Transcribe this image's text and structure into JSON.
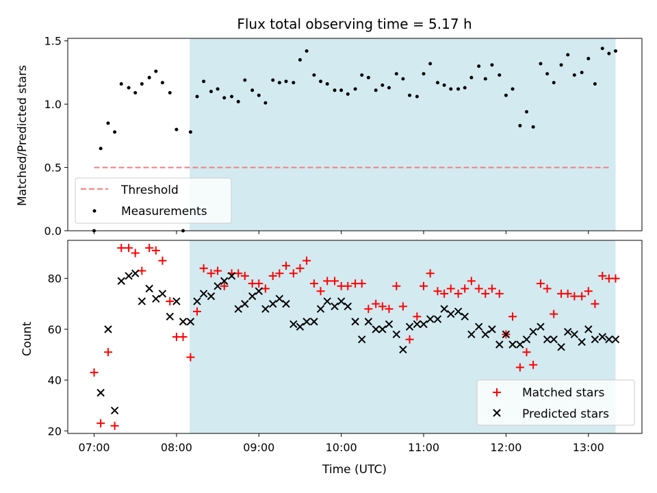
{
  "chart_data": {
    "type": "scatter",
    "title": "Flux total observing time = 5.17 h",
    "xlabel": "Time (UTC)",
    "x_ticks": [
      "07:00",
      "08:00",
      "09:00",
      "10:00",
      "11:00",
      "12:00",
      "13:00"
    ],
    "x_tick_values_h": [
      7,
      8,
      9,
      10,
      11,
      12,
      13
    ],
    "xlim_h": [
      6.68,
      13.65
    ],
    "shaded_span_h": [
      8.16,
      13.33
    ],
    "colors": {
      "shade": "#d3eaf0",
      "threshold": "#f08080",
      "matched": "#ff0000",
      "predicted": "#000000",
      "measurements": "#000000"
    },
    "panels": [
      {
        "ylabel": "Matched/Predicted stars",
        "ylim": [
          0,
          1.52
        ],
        "y_ticks": [
          0.0,
          0.5,
          1.0,
          1.5
        ],
        "y_tick_labels": [
          "0.0",
          "0.5",
          "1.0",
          "1.5"
        ],
        "legend": {
          "position": "lower-left",
          "entries": [
            "Threshold",
            "Measurements"
          ]
        },
        "threshold": {
          "name": "Threshold",
          "value": 0.5,
          "x_range": [
            7.0,
            13.28
          ]
        },
        "measurements": {
          "name": "Measurements",
          "x": [
            7.0,
            7.08,
            7.17,
            7.25,
            7.33,
            7.42,
            7.5,
            7.58,
            7.67,
            7.75,
            7.83,
            7.92,
            8.0,
            8.08,
            8.17,
            8.25,
            8.33,
            8.42,
            8.5,
            8.58,
            8.67,
            8.75,
            8.83,
            8.92,
            9.0,
            9.08,
            9.17,
            9.25,
            9.33,
            9.42,
            9.5,
            9.58,
            9.67,
            9.75,
            9.83,
            9.92,
            10.0,
            10.08,
            10.17,
            10.25,
            10.33,
            10.42,
            10.5,
            10.58,
            10.67,
            10.75,
            10.83,
            10.92,
            11.0,
            11.08,
            11.17,
            11.25,
            11.33,
            11.42,
            11.5,
            11.58,
            11.67,
            11.75,
            11.83,
            11.92,
            12.0,
            12.08,
            12.17,
            12.25,
            12.33,
            12.42,
            12.5,
            12.58,
            12.67,
            12.75,
            12.83,
            12.92,
            13.0,
            13.08,
            13.17,
            13.25,
            13.33
          ],
          "y": [
            0.0,
            0.65,
            0.85,
            0.78,
            1.16,
            1.13,
            1.09,
            1.16,
            1.21,
            1.26,
            1.17,
            1.09,
            0.8,
            0.0,
            0.78,
            1.06,
            1.18,
            1.1,
            1.12,
            1.05,
            1.06,
            1.02,
            1.19,
            1.11,
            1.07,
            1.01,
            1.19,
            1.17,
            1.18,
            1.17,
            1.35,
            1.42,
            1.23,
            1.18,
            1.16,
            1.11,
            1.11,
            1.08,
            1.12,
            1.23,
            1.21,
            1.11,
            1.15,
            1.13,
            1.24,
            1.2,
            1.07,
            1.06,
            1.24,
            1.32,
            1.17,
            1.15,
            1.12,
            1.12,
            1.13,
            1.21,
            1.3,
            1.2,
            1.31,
            1.23,
            1.07,
            1.12,
            0.83,
            0.94,
            0.82,
            1.32,
            1.24,
            1.17,
            1.31,
            1.39,
            1.23,
            1.25,
            1.36,
            1.16,
            1.44,
            1.4,
            1.42
          ]
        }
      },
      {
        "ylabel": "Count",
        "ylim": [
          19,
          95
        ],
        "y_ticks": [
          20,
          40,
          60,
          80
        ],
        "y_tick_labels": [
          "20",
          "40",
          "60",
          "80"
        ],
        "legend": {
          "position": "lower-right",
          "entries": [
            "Matched stars",
            "Predicted stars"
          ]
        },
        "matched": {
          "name": "Matched stars",
          "x": [
            7.0,
            7.08,
            7.17,
            7.25,
            7.33,
            7.42,
            7.5,
            7.58,
            7.67,
            7.75,
            7.83,
            7.92,
            8.0,
            8.08,
            8.17,
            8.25,
            8.33,
            8.42,
            8.5,
            8.58,
            8.67,
            8.75,
            8.83,
            8.92,
            9.0,
            9.08,
            9.17,
            9.25,
            9.33,
            9.42,
            9.5,
            9.58,
            9.67,
            9.75,
            9.83,
            9.92,
            10.0,
            10.08,
            10.17,
            10.25,
            10.33,
            10.42,
            10.5,
            10.58,
            10.67,
            10.75,
            10.83,
            10.92,
            11.0,
            11.08,
            11.17,
            11.25,
            11.33,
            11.42,
            11.5,
            11.58,
            11.67,
            11.75,
            11.83,
            11.92,
            12.0,
            12.08,
            12.17,
            12.25,
            12.33,
            12.42,
            12.5,
            12.58,
            12.67,
            12.75,
            12.83,
            12.92,
            13.0,
            13.08,
            13.17,
            13.25,
            13.33
          ],
          "y": [
            43,
            23,
            51,
            22,
            92,
            92,
            90,
            83,
            92,
            91,
            87,
            71,
            57,
            57,
            49,
            67,
            84,
            82,
            83,
            77,
            82,
            82,
            81,
            78,
            78,
            76,
            81,
            82,
            85,
            82,
            84,
            87,
            78,
            75,
            79,
            79,
            77,
            77,
            78,
            78,
            68,
            70,
            69,
            68,
            77,
            69,
            56,
            65,
            77,
            82,
            75,
            74,
            76,
            74,
            76,
            79,
            76,
            74,
            76,
            74,
            58,
            65,
            45,
            51,
            46,
            78,
            76,
            66,
            74,
            74,
            73,
            73,
            75,
            70,
            81,
            80,
            80
          ]
        },
        "predicted": {
          "name": "Predicted stars",
          "x": [
            7.08,
            7.17,
            7.25,
            7.33,
            7.42,
            7.5,
            7.58,
            7.67,
            7.75,
            7.83,
            7.92,
            8.0,
            8.08,
            8.17,
            8.25,
            8.33,
            8.42,
            8.5,
            8.58,
            8.67,
            8.75,
            8.83,
            8.92,
            9.0,
            9.08,
            9.17,
            9.25,
            9.33,
            9.42,
            9.5,
            9.58,
            9.67,
            9.75,
            9.83,
            9.92,
            10.0,
            10.08,
            10.17,
            10.25,
            10.33,
            10.42,
            10.5,
            10.58,
            10.67,
            10.75,
            10.83,
            10.92,
            11.0,
            11.08,
            11.17,
            11.25,
            11.33,
            11.42,
            11.5,
            11.58,
            11.67,
            11.75,
            11.83,
            11.92,
            12.0,
            12.08,
            12.17,
            12.25,
            12.33,
            12.42,
            12.5,
            12.58,
            12.67,
            12.75,
            12.83,
            12.92,
            13.0,
            13.08,
            13.17,
            13.25,
            13.33
          ],
          "y": [
            35,
            60,
            28,
            79,
            81,
            82,
            71,
            76,
            72,
            74,
            65,
            71,
            63,
            63,
            71,
            74,
            73,
            77,
            79,
            81,
            68,
            70,
            73,
            75,
            68,
            70,
            72,
            70,
            62,
            61,
            63,
            63,
            68,
            71,
            69,
            71,
            69,
            63,
            56,
            63,
            60,
            60,
            62,
            58,
            52,
            61,
            62,
            62,
            64,
            64,
            68,
            66,
            67,
            65,
            58,
            61,
            58,
            60,
            54,
            58,
            54,
            54,
            56,
            59,
            61,
            56,
            56,
            53,
            59,
            58,
            55,
            60,
            56,
            57,
            56,
            56
          ]
        }
      }
    ]
  }
}
